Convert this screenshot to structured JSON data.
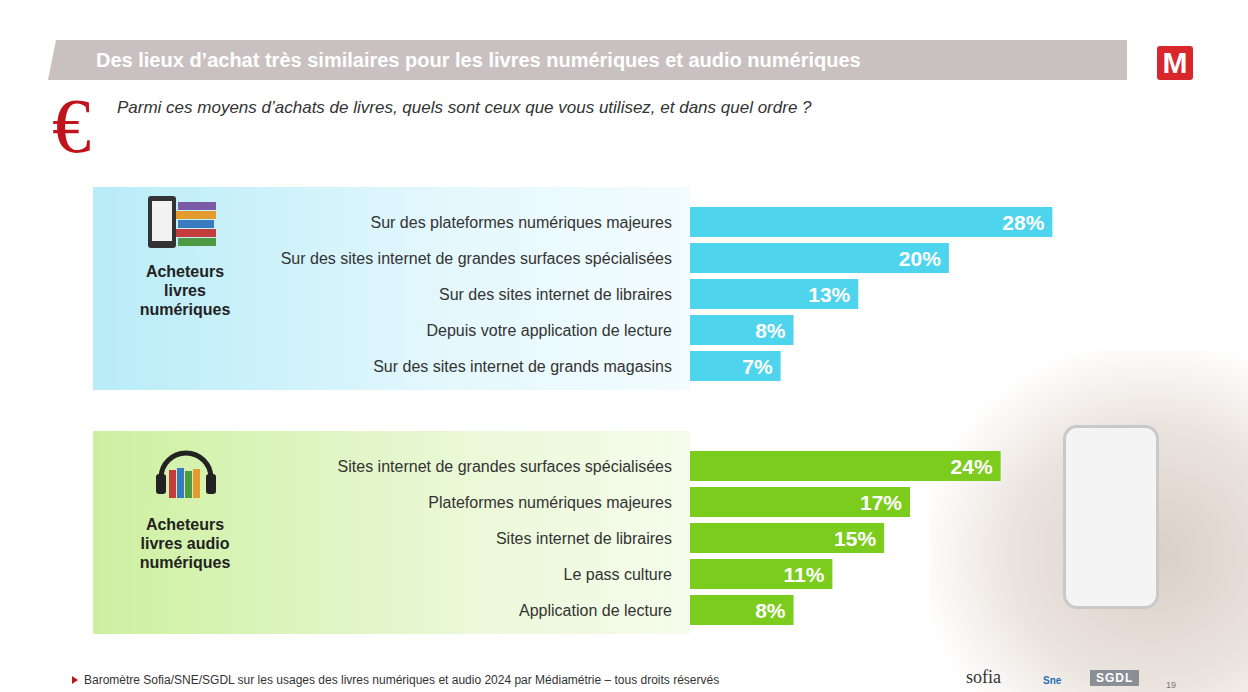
{
  "header": {
    "title": "Des lieux d’achat très similaires pour les livres numériques et audio numériques",
    "question": "Parmi ces moyens d’achats de livres, quels sont ceux que vous utilisez, et dans quel ordre ?",
    "icon": "€",
    "logo": "M"
  },
  "chart_data": [
    {
      "type": "bar",
      "title": "Acheteurs livres numériques",
      "orientation": "horizontal",
      "categories": [
        "Sur des plateformes numériques majeures",
        "Sur des sites internet de grandes surfaces spécialisées",
        "Sur des sites internet de libraires",
        "Depuis votre application de lecture",
        "Sur des sites internet de grands magasins"
      ],
      "values": [
        28,
        20,
        13,
        8,
        7
      ],
      "value_labels": [
        "28%",
        "20%",
        "13%",
        "8%",
        "7%"
      ],
      "color": "#4fd4ee",
      "xlim": [
        0,
        35
      ],
      "tick_labels": "y",
      "data_labels": true
    },
    {
      "type": "bar",
      "title": "Acheteurs livres audio numériques",
      "orientation": "horizontal",
      "categories": [
        "Sites internet de grandes surfaces spécialisées",
        "Plateformes numériques majeures",
        "Sites internet de libraires",
        "Le pass culture",
        "Application de lecture"
      ],
      "values": [
        24,
        17,
        15,
        11,
        8
      ],
      "value_labels": [
        "24%",
        "17%",
        "15%",
        "11%",
        "8%"
      ],
      "color": "#7ccc1e",
      "xlim": [
        0,
        35
      ],
      "tick_labels": "y",
      "data_labels": true
    }
  ],
  "footer": {
    "source": "Baromètre Sofia/SNE/SGDL sur les usages des livres numériques et audio 2024 par Médiamétrie – tous droits réservés",
    "logos": [
      "sofia",
      "Sne",
      "SGDL"
    ],
    "page": "19"
  }
}
